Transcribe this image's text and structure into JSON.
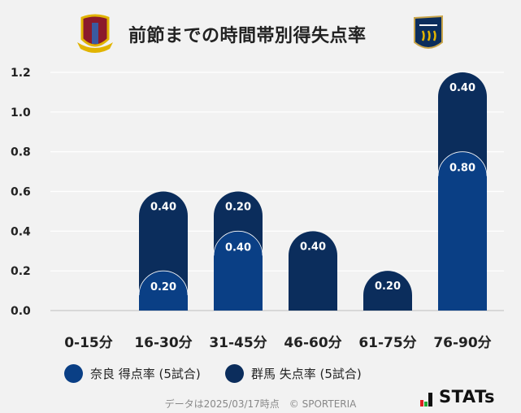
{
  "title": "前節までの時間帯別得失点率",
  "home_logo": "nara-club-crest",
  "away_logo": "gunma-crest",
  "chart_data": {
    "type": "bar",
    "stacked": true,
    "categories": [
      "0-15分",
      "16-30分",
      "31-45分",
      "46-60分",
      "61-75分",
      "76-90分"
    ],
    "series": [
      {
        "name": "奈良 得点率 (5試合)",
        "color": "#0a3f85",
        "values": [
          0,
          0.2,
          0.4,
          0,
          0,
          0.8
        ],
        "labels": [
          "",
          "0.20",
          "0.40",
          "",
          "",
          "0.80"
        ]
      },
      {
        "name": "群馬 失点率 (5試合)",
        "color": "#0b2d5c",
        "values": [
          0,
          0.4,
          0.2,
          0.4,
          0.2,
          0.4
        ],
        "labels": [
          "",
          "0.40",
          "0.20",
          "0.40",
          "0.20",
          "0.40"
        ]
      }
    ],
    "yticks": [
      "0.0",
      "0.2",
      "0.4",
      "0.6",
      "0.8",
      "1.0",
      "1.2"
    ],
    "ylim": [
      0,
      1.2
    ],
    "grid": true,
    "legend": "bottom"
  },
  "footer": "データは2025/03/17時点　© SPORTERIA",
  "brand": "STATs"
}
